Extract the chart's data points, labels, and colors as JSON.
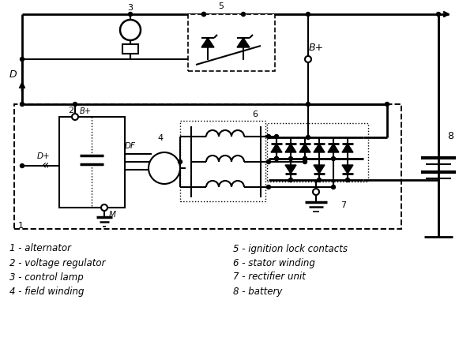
{
  "bg_color": "#ffffff",
  "line_color": "#000000",
  "legend_items_left": [
    "1 - alternator",
    "2 - voltage regulator",
    "3 - control lamp",
    "4 - field winding"
  ],
  "legend_items_right": [
    "5 - ignition lock contacts",
    "6 - stator winding",
    "7 - rectifier unit",
    "8 - battery"
  ],
  "fig_width": 6.0,
  "fig_height": 4.51
}
